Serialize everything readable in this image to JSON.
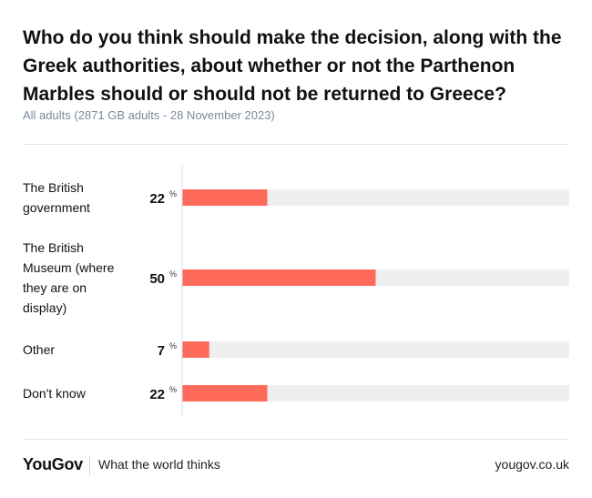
{
  "chart_data": {
    "type": "bar",
    "orientation": "horizontal",
    "title": "Who do you think should make the decision, along with the Greek authorities, about whether or not the Parthenon Marbles should or should not be returned to Greece?",
    "subtitle": "All adults (2871 GB adults - 28 November 2023)",
    "categories": [
      [
        "The British",
        "government"
      ],
      [
        "The British",
        "Museum (where",
        "they are on",
        "display)"
      ],
      [
        "Other"
      ],
      [
        "Don't know"
      ]
    ],
    "values": [
      22,
      50,
      7,
      22
    ],
    "unit": "%",
    "xlim": [
      0,
      100
    ],
    "colors": {
      "bar": "#ff6b5b",
      "track": "#efefef",
      "axis": "#dcdcdc"
    }
  },
  "footer": {
    "logo": "YouGov",
    "tagline": "What the world thinks",
    "url": "yougov.co.uk"
  }
}
